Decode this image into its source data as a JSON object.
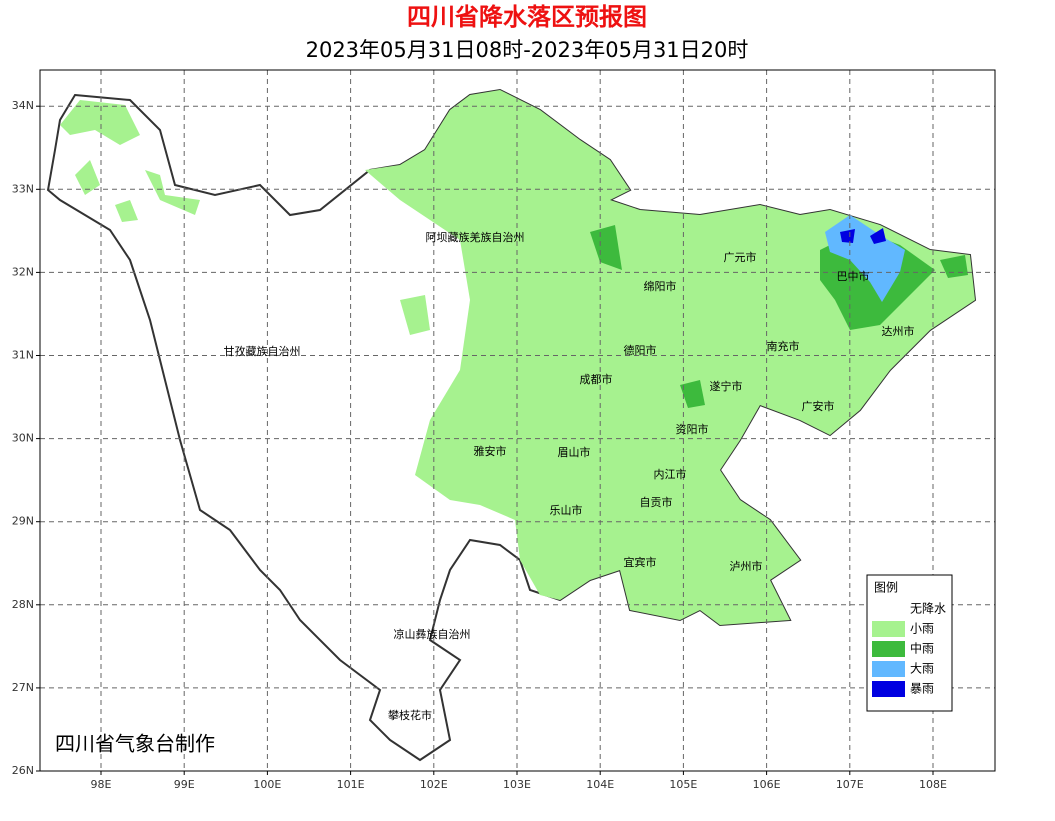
{
  "header": {
    "title": "四川省降水落区预报图",
    "subtitle": "2023年05月31日08时-2023年05月31日20时"
  },
  "axes": {
    "lat_ticks": [
      {
        "value": 26,
        "label": "26N"
      },
      {
        "value": 27,
        "label": "27N"
      },
      {
        "value": 28,
        "label": "28N"
      },
      {
        "value": 29,
        "label": "29N"
      },
      {
        "value": 30,
        "label": "30N"
      },
      {
        "value": 31,
        "label": "31N"
      },
      {
        "value": 32,
        "label": "32N"
      },
      {
        "value": 33,
        "label": "33N"
      },
      {
        "value": 34,
        "label": "34N"
      }
    ],
    "lon_ticks": [
      {
        "value": 98,
        "label": "98E"
      },
      {
        "value": 99,
        "label": "99E"
      },
      {
        "value": 100,
        "label": "100E"
      },
      {
        "value": 101,
        "label": "101E"
      },
      {
        "value": 102,
        "label": "102E"
      },
      {
        "value": 103,
        "label": "103E"
      },
      {
        "value": 104,
        "label": "104E"
      },
      {
        "value": 105,
        "label": "105E"
      },
      {
        "value": 106,
        "label": "106E"
      },
      {
        "value": 107,
        "label": "107E"
      },
      {
        "value": 108,
        "label": "108E"
      }
    ]
  },
  "regions": [
    "阿坝藏族羌族自治州",
    "甘孜藏族自治州",
    "凉山彝族自治州",
    "攀枝花市",
    "广元市",
    "巴中市",
    "绵阳市",
    "达州市",
    "德阳市",
    "南充市",
    "成都市",
    "遂宁市",
    "广安市",
    "资阳市",
    "雅安市",
    "眉山市",
    "内江市",
    "自贡市",
    "乐山市",
    "宜宾市",
    "泸州市"
  ],
  "legend": {
    "title": "图例",
    "items": [
      {
        "label": "无降水",
        "color": "#ffffff"
      },
      {
        "label": "小雨",
        "color": "#a6f28f"
      },
      {
        "label": "中雨",
        "color": "#3dba3d"
      },
      {
        "label": "大雨",
        "color": "#61b8ff"
      },
      {
        "label": "暴雨",
        "color": "#0000e1"
      }
    ]
  },
  "credit": "四川省气象台制作"
}
